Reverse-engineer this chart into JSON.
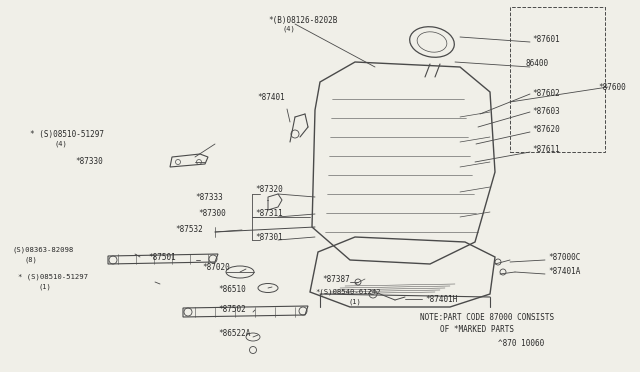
{
  "bg_color": "#f0efe8",
  "line_color": "#4a4a4a",
  "text_color": "#2a2a2a",
  "note_line1": "NOTE:PART CODE 87000 CONSISTS",
  "note_line2": "OF *MARKED PARTS",
  "note_line3": "^870 10060",
  "figsize": [
    6.4,
    3.72
  ],
  "dpi": 100
}
